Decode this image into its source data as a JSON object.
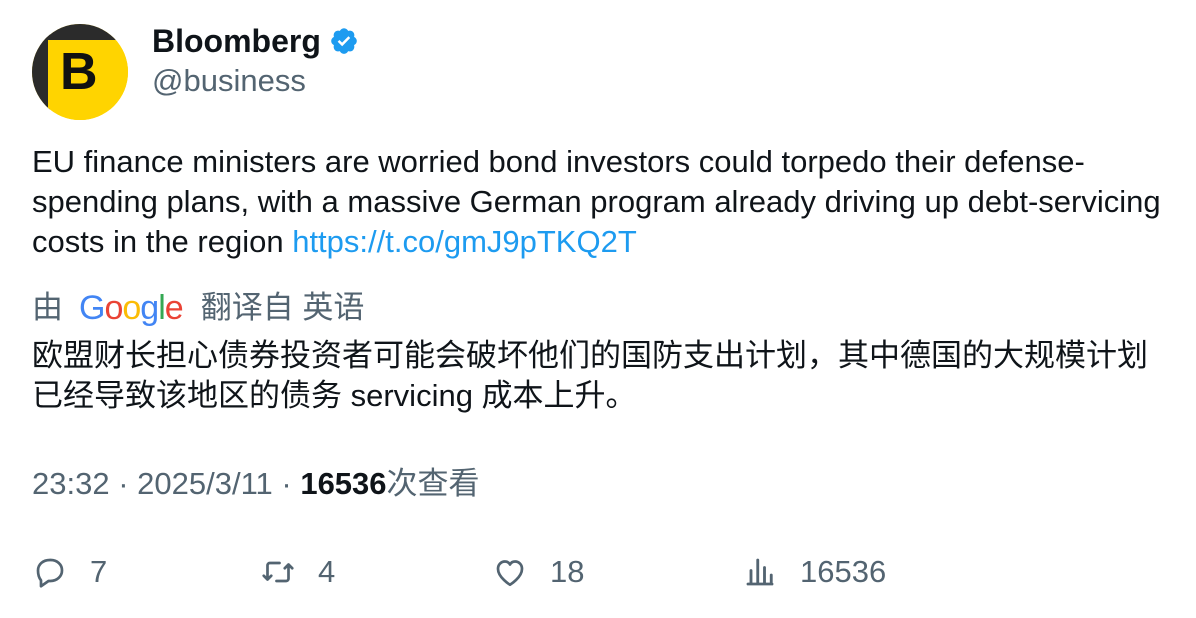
{
  "author": {
    "display_name": "Bloomberg",
    "handle": "@business",
    "avatar_letter": "B",
    "avatar_color": "#ffd400",
    "verified_color": "#1d9bf0",
    "verified_icon": "verified-badge-icon"
  },
  "tweet": {
    "text": "EU finance ministers are worried bond investors could torpedo their defense-spending plans, with a massive German program already driving up debt-servicing costs in the region ",
    "link": "https://t.co/gmJ9pTKQ2T",
    "link_color": "#1d9bf0"
  },
  "translation": {
    "prefix": "由",
    "provider_letters": [
      "G",
      "o",
      "o",
      "g",
      "l",
      "e"
    ],
    "suffix": "翻译自 英语",
    "text": "欧盟财长担心债券投资者可能会破坏他们的国防支出计划，其中德国的大规模计划已经导致该地区的债务 servicing 成本上升。"
  },
  "meta": {
    "time": "23:32",
    "separator": "·",
    "date": "2025/3/11",
    "views_count": "16536",
    "views_label": "次查看"
  },
  "actions": {
    "replies": "7",
    "retweets": "4",
    "likes": "18",
    "views": "16536",
    "icons": [
      "reply-icon",
      "retweet-icon",
      "like-icon",
      "views-icon"
    ]
  }
}
